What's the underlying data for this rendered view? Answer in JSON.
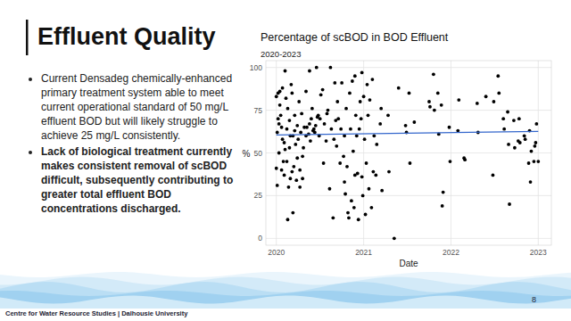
{
  "slide": {
    "title": "Effluent Quality",
    "bullets": [
      "Current Densadeg chemically-enhanced primary treatment system able to meet current operational standard of 50 mg/L effluent BOD but will likely struggle to achieve 25 mg/L consistently.",
      "Lack of biological treatment currently makes consistent removal of scBOD difficult, subsequently contributing to greater total effluent BOD concentrations discharged."
    ],
    "footer": "Centre for Water Resource Studies | Dalhousie University",
    "page": 8
  },
  "chart_data": {
    "type": "scatter",
    "title": "Percentage of scBOD in BOD Effluent",
    "subtitle": "2020-2023",
    "x_label": "Date",
    "y_label": "%",
    "xlim": [
      2019.88,
      2023.15
    ],
    "ylim": [
      -4,
      104
    ],
    "xticks": [
      2020,
      2021,
      2022,
      2023
    ],
    "yticks": [
      0,
      25,
      50,
      75,
      100
    ],
    "grid": true,
    "series": [
      {
        "type": "scatter",
        "color": "#000000",
        "marker": "circle",
        "x": [
          2020.0,
          2020.01,
          2020.0,
          2020.02,
          2020.01,
          2020.02,
          2020.03,
          2020.04,
          2020.03,
          2020.05,
          2020.04,
          2020.06,
          2020.07,
          2020.06,
          2020.08,
          2020.07,
          2020.09,
          2020.1,
          2020.09,
          2020.11,
          2020.1,
          2020.12,
          2020.13,
          2020.12,
          2020.14,
          2020.13,
          2020.15,
          2020.16,
          2020.15,
          2020.17,
          2020.16,
          2020.18,
          2020.19,
          2020.18,
          2020.2,
          2020.19,
          2020.21,
          2020.22,
          2020.21,
          2020.23,
          2020.24,
          2020.25,
          2020.24,
          2020.26,
          2020.27,
          2020.28,
          2020.27,
          2020.29,
          2020.3,
          2020.31,
          2020.3,
          2020.32,
          2020.34,
          2020.35,
          2020.34,
          2020.38,
          2020.39,
          2020.37,
          2020.4,
          2020.38,
          2020.42,
          2020.43,
          2020.41,
          2020.44,
          2020.46,
          2020.47,
          2020.45,
          2020.48,
          2020.5,
          2020.51,
          2020.49,
          2020.54,
          2020.55,
          2020.53,
          2020.58,
          2020.59,
          2020.57,
          2020.62,
          2020.63,
          2020.61,
          2020.66,
          2020.67,
          2020.65,
          2020.68,
          2020.7,
          2020.71,
          2020.69,
          2020.74,
          2020.75,
          2020.73,
          2020.78,
          2020.79,
          2020.77,
          2020.8,
          2020.78,
          2020.82,
          2020.83,
          2020.81,
          2020.84,
          2020.86,
          2020.87,
          2020.85,
          2020.88,
          2020.9,
          2020.91,
          2020.89,
          2020.92,
          2020.9,
          2020.94,
          2020.95,
          2020.93,
          2020.96,
          2020.98,
          2020.99,
          2020.97,
          2021.0,
          2020.98,
          2021.02,
          2021.03,
          2021.01,
          2021.04,
          2021.06,
          2021.07,
          2021.05,
          2021.1,
          2021.11,
          2021.09,
          2021.12,
          2021.14,
          2021.15,
          2021.2,
          2021.21,
          2021.19,
          2021.28,
          2021.29,
          2021.35,
          2021.4,
          2021.48,
          2021.49,
          2021.52,
          2021.53,
          2021.58,
          2021.75,
          2021.76,
          2021.8,
          2021.81,
          2021.85,
          2021.86,
          2021.9,
          2021.91,
          2021.89,
          2021.98,
          2021.99,
          2022.08,
          2022.09,
          2022.15,
          2022.16,
          2022.3,
          2022.31,
          2022.4,
          2022.48,
          2022.49,
          2022.54,
          2022.55,
          2022.6,
          2022.61,
          2022.66,
          2022.67,
          2022.65,
          2022.72,
          2022.73,
          2022.78,
          2022.79,
          2022.77,
          2022.84,
          2022.85,
          2022.9,
          2022.91,
          2022.89,
          2022.92,
          2022.96,
          2022.97,
          2022.95,
          2022.98,
          2023.0
        ],
        "values": [
          41,
          62,
          83,
          85,
          31,
          70,
          50,
          86,
          67,
          72,
          78,
          65,
          58,
          40,
          45,
          88,
          37,
          52,
          56,
          82,
          98,
          45,
          11,
          64,
          30,
          76,
          53,
          60,
          69,
          90,
          35,
          39,
          60,
          85,
          42,
          15,
          63,
          55,
          72,
          34,
          47,
          58,
          66,
          80,
          40,
          62,
          30,
          73,
          35,
          53,
          48,
          65,
          86,
          65,
          60,
          98,
          57,
          61,
          70,
          67,
          63,
          64,
          76,
          62,
          100,
          71,
          66,
          72,
          70,
          84,
          60,
          44,
          67,
          87,
          73,
          75,
          57,
          100,
          64,
          29,
          58,
          91,
          12,
          69,
          80,
          70,
          54,
          64,
          91,
          44,
          33,
          26,
          48,
          76,
          60,
          15,
          12,
          42,
          85,
          22,
          92,
          64,
          51,
          37,
          72,
          18,
          60,
          95,
          11,
          64,
          38,
          80,
          36,
          25,
          70,
          83,
          97,
          14,
          44,
          58,
          90,
          29,
          81,
          72,
          93,
          39,
          18,
          60,
          37,
          55,
          76,
          28,
          67,
          72,
          39,
          0,
          88,
          66,
          62,
          85,
          44,
          68,
          80,
          77,
          96,
          75,
          85,
          61,
          19,
          27,
          78,
          65,
          45,
          63,
          81,
          47,
          46,
          79,
          62,
          83,
          37,
          80,
          95,
          85,
          70,
          64,
          55,
          20,
          74,
          69,
          53,
          70,
          56,
          57,
          60,
          58,
          63,
          33,
          44,
          51,
          54,
          56,
          45,
          67,
          45
        ]
      },
      {
        "type": "line",
        "color": "#3366cc",
        "line_style": "solid",
        "x": [
          2020.0,
          2023.0
        ],
        "values": [
          60.5,
          62.6
        ]
      }
    ]
  }
}
